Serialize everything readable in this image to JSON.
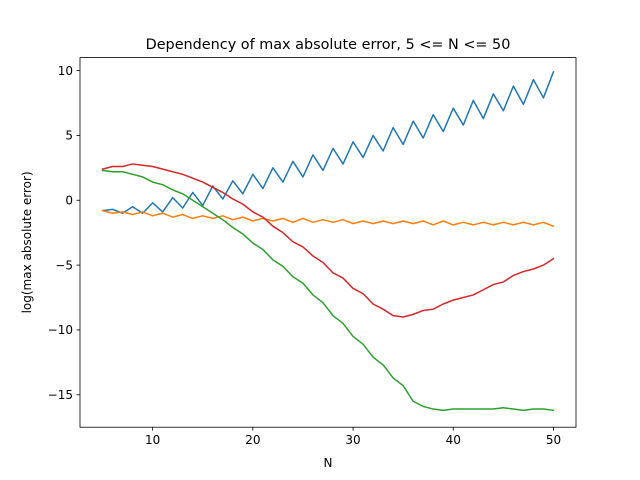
{
  "chart_data": {
    "type": "line",
    "title": "Dependency of max absolute error, 5 <= N <= 50",
    "xlabel": "N",
    "ylabel": "log(max absolute error)",
    "xlim": [
      2.75,
      52.25
    ],
    "ylim": [
      -17.5,
      11.0
    ],
    "xticks": [
      10,
      20,
      30,
      40,
      50
    ],
    "yticks": [
      -15,
      -10,
      -5,
      0,
      5,
      10
    ],
    "grid": false,
    "legend": "none",
    "x": [
      5,
      6,
      7,
      8,
      9,
      10,
      11,
      12,
      13,
      14,
      15,
      16,
      17,
      18,
      19,
      20,
      21,
      22,
      23,
      24,
      25,
      26,
      27,
      28,
      29,
      30,
      31,
      32,
      33,
      34,
      35,
      36,
      37,
      38,
      39,
      40,
      41,
      42,
      43,
      44,
      45,
      46,
      47,
      48,
      49,
      50
    ],
    "series": [
      {
        "color": "#1f77b4",
        "values": [
          -0.8,
          -0.7,
          -1.0,
          -0.5,
          -1.0,
          -0.2,
          -0.9,
          0.2,
          -0.6,
          0.6,
          -0.4,
          1.1,
          0.1,
          1.5,
          0.5,
          2.0,
          0.9,
          2.5,
          1.4,
          3.0,
          1.8,
          3.5,
          2.3,
          4.0,
          2.8,
          4.5,
          3.3,
          5.0,
          3.8,
          5.6,
          4.3,
          6.1,
          4.8,
          6.6,
          5.3,
          7.1,
          5.8,
          7.7,
          6.3,
          8.2,
          6.9,
          8.8,
          7.4,
          9.3,
          7.9,
          9.9
        ]
      },
      {
        "color": "#ff7f0e",
        "values": [
          -0.8,
          -1.0,
          -0.9,
          -1.1,
          -0.9,
          -1.2,
          -1.0,
          -1.3,
          -1.1,
          -1.4,
          -1.2,
          -1.4,
          -1.2,
          -1.5,
          -1.3,
          -1.6,
          -1.4,
          -1.6,
          -1.4,
          -1.7,
          -1.4,
          -1.7,
          -1.5,
          -1.7,
          -1.5,
          -1.8,
          -1.6,
          -1.8,
          -1.6,
          -1.8,
          -1.6,
          -1.8,
          -1.6,
          -1.9,
          -1.6,
          -1.9,
          -1.7,
          -1.9,
          -1.7,
          -1.9,
          -1.7,
          -1.9,
          -1.7,
          -1.9,
          -1.7,
          -2.0
        ]
      },
      {
        "color": "#2ca02c",
        "values": [
          2.3,
          2.2,
          2.2,
          2.0,
          1.8,
          1.4,
          1.2,
          0.8,
          0.5,
          0.0,
          -0.5,
          -1.0,
          -1.5,
          -2.1,
          -2.6,
          -3.3,
          -3.8,
          -4.6,
          -5.1,
          -5.9,
          -6.4,
          -7.3,
          -7.9,
          -8.9,
          -9.5,
          -10.5,
          -11.1,
          -12.1,
          -12.7,
          -13.7,
          -14.3,
          -15.5,
          -15.9,
          -16.1,
          -16.2,
          -16.1,
          -16.1,
          -16.1,
          -16.1,
          -16.1,
          -16.0,
          -16.1,
          -16.2,
          -16.1,
          -16.1,
          -16.2
        ]
      },
      {
        "color": "#d62728",
        "values": [
          2.4,
          2.6,
          2.6,
          2.8,
          2.7,
          2.6,
          2.4,
          2.2,
          2.0,
          1.7,
          1.4,
          1.0,
          0.6,
          0.1,
          -0.3,
          -0.9,
          -1.3,
          -2.0,
          -2.5,
          -3.2,
          -3.6,
          -4.3,
          -4.8,
          -5.6,
          -6.0,
          -6.8,
          -7.2,
          -8.0,
          -8.4,
          -8.9,
          -9.0,
          -8.8,
          -8.5,
          -8.4,
          -8.0,
          -7.7,
          -7.5,
          -7.3,
          -6.9,
          -6.5,
          -6.3,
          -5.8,
          -5.5,
          -5.3,
          -5.0,
          -4.5
        ]
      }
    ]
  }
}
